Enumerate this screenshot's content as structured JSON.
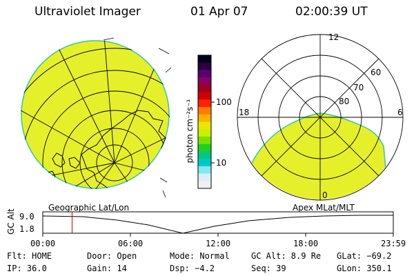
{
  "header": {
    "title": "Ultraviolet Imager",
    "date": "01 Apr 07",
    "time": "02:00:39 UT"
  },
  "colorbar": {
    "unit_label": "photon cm⁻²s⁻¹",
    "tick_100": "100",
    "tick_10": "10",
    "colors": [
      "#000020",
      "#2a0040",
      "#5a0070",
      "#8a0060",
      "#a00020",
      "#d00000",
      "#ff2000",
      "#ff7a00",
      "#ffb000",
      "#e8e800",
      "#c8f000",
      "#7ae000",
      "#20d020",
      "#00c880",
      "#00c8c8",
      "#80e8f0",
      "#d8f0f8",
      "#f0f0f0"
    ]
  },
  "left_panel": {
    "caption": "Geographic Lat/Lon",
    "fill_color": "#e6f02a"
  },
  "right_panel": {
    "caption": "Apex MLat/MLT",
    "mlt_12": "12",
    "mlt_18": "18",
    "mlt_6": "6",
    "mlt_0": "0",
    "lat_60": "60",
    "lat_70": "70",
    "lat_80": "80",
    "fill_color": "#e6f02a"
  },
  "orbit": {
    "ylabel": "GC Alt",
    "y_ticks": [
      "9.0",
      "1.8"
    ],
    "x_ticks": [
      "00:00",
      "06:00",
      "12:00",
      "18:00",
      "23:59"
    ],
    "current_time_fraction": 0.0837
  },
  "info": {
    "flt": "Flt: HOME",
    "door": "Door: Open",
    "mode": "Mode: Normal",
    "gc_alt": "GC Alt: 8.9 Re",
    "glat": "GLat: −69.2",
    "ip": "IP: 36.0",
    "gain": "Gain: 14",
    "dsp": "Dsp:    −4.2",
    "seq": "Seq: 39",
    "glon": "GLon: 350.1"
  }
}
